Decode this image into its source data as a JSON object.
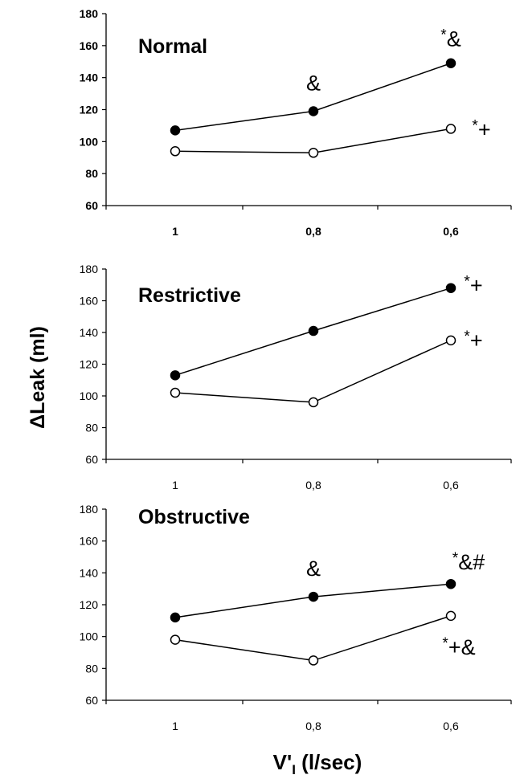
{
  "chart_data": {
    "ylabel": "ΔLeak (ml)",
    "xlabel": "V'I (l/sec)",
    "xlabel_parts": {
      "base": "V'",
      "subscript": "I",
      "rest": " (l/sec)"
    },
    "panels": [
      {
        "type": "line",
        "title": "Normal",
        "categories": [
          "1",
          "0,8",
          "0,6"
        ],
        "ylim": [
          60,
          180
        ],
        "yticks": [
          60,
          80,
          100,
          120,
          140,
          160,
          180
        ],
        "grid": false,
        "series": [
          {
            "marker": "filled",
            "values": [
              107,
              119,
              149
            ]
          },
          {
            "marker": "open",
            "values": [
              94,
              93,
              108
            ]
          }
        ],
        "annotations": [
          {
            "text": "&",
            "series": 0,
            "index": 1
          },
          {
            "text": "*&",
            "series": 0,
            "index": 2
          },
          {
            "text": "*+",
            "series": 1,
            "index": 2
          }
        ]
      },
      {
        "type": "line",
        "title": "Restrictive",
        "categories": [
          "1",
          "0,8",
          "0,6"
        ],
        "ylim": [
          60,
          180
        ],
        "yticks": [
          60,
          80,
          100,
          120,
          140,
          160,
          180
        ],
        "grid": false,
        "series": [
          {
            "marker": "filled",
            "values": [
              113,
              141,
              168
            ]
          },
          {
            "marker": "open",
            "values": [
              102,
              96,
              135
            ]
          }
        ],
        "annotations": [
          {
            "text": "*+",
            "series": 0,
            "index": 2
          },
          {
            "text": "*+",
            "series": 1,
            "index": 2
          }
        ]
      },
      {
        "type": "line",
        "title": "Obstructive",
        "categories": [
          "1",
          "0,8",
          "0,6"
        ],
        "ylim": [
          60,
          180
        ],
        "yticks": [
          60,
          80,
          100,
          120,
          140,
          160,
          180
        ],
        "grid": false,
        "series": [
          {
            "marker": "filled",
            "values": [
              112,
              125,
              133
            ]
          },
          {
            "marker": "open",
            "values": [
              98,
              85,
              113
            ]
          }
        ],
        "annotations": [
          {
            "text": "&",
            "series": 0,
            "index": 1
          },
          {
            "text": "*&#",
            "series": 0,
            "index": 2
          },
          {
            "text": "*+&",
            "series": 1,
            "index": 2
          }
        ]
      }
    ]
  }
}
